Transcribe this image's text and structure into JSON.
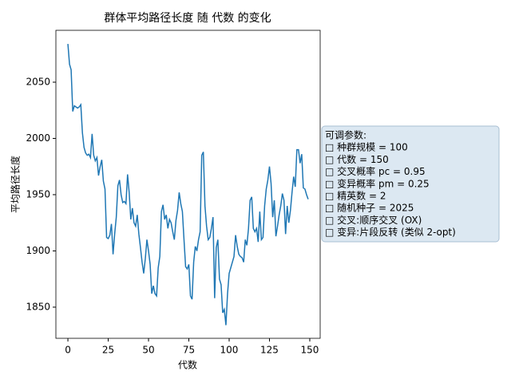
{
  "chart_data": {
    "type": "line",
    "title": "群体平均路径长度 随 代数 的变化",
    "xlabel": "代数",
    "ylabel": "平均路径长度",
    "x": [
      0,
      1,
      2,
      3,
      4,
      5,
      6,
      7,
      8,
      9,
      10,
      11,
      12,
      13,
      14,
      15,
      16,
      17,
      18,
      19,
      20,
      21,
      22,
      23,
      24,
      25,
      26,
      27,
      28,
      29,
      30,
      31,
      32,
      33,
      34,
      35,
      36,
      37,
      38,
      39,
      40,
      41,
      42,
      43,
      44,
      45,
      46,
      47,
      48,
      49,
      50,
      51,
      52,
      53,
      54,
      55,
      56,
      57,
      58,
      59,
      60,
      61,
      62,
      63,
      64,
      65,
      66,
      67,
      68,
      69,
      70,
      71,
      72,
      73,
      74,
      75,
      76,
      77,
      78,
      79,
      80,
      81,
      82,
      83,
      84,
      85,
      86,
      87,
      88,
      89,
      90,
      91,
      92,
      93,
      94,
      95,
      96,
      97,
      98,
      99,
      100,
      101,
      102,
      103,
      104,
      105,
      106,
      107,
      108,
      109,
      110,
      111,
      112,
      113,
      114,
      115,
      116,
      117,
      118,
      119,
      120,
      121,
      122,
      123,
      124,
      125,
      126,
      127,
      128,
      129,
      130,
      131,
      132,
      133,
      134,
      135,
      136,
      137,
      138,
      139,
      140,
      141,
      142,
      143,
      144,
      145,
      146,
      147,
      148,
      149
    ],
    "series": [
      {
        "color": "#1f77b4",
        "values": [
          2084,
          2066,
          2061,
          2024,
          2029,
          2028,
          2027,
          2028,
          2030,
          2005,
          1992,
          1987,
          1985,
          1986,
          1983,
          2004,
          1985,
          1980,
          1983,
          1967,
          1975,
          1981,
          1962,
          1955,
          1912,
          1911,
          1914,
          1924,
          1897,
          1915,
          1930,
          1958,
          1963,
          1950,
          1943,
          1944,
          1942,
          1968,
          1952,
          1928,
          1938,
          1925,
          1922,
          1932,
          1915,
          1903,
          1890,
          1880,
          1893,
          1910,
          1900,
          1888,
          1862,
          1869,
          1862,
          1860,
          1885,
          1895,
          1935,
          1941,
          1928,
          1932,
          1920,
          1928,
          1925,
          1917,
          1910,
          1927,
          1936,
          1952,
          1942,
          1935,
          1910,
          1886,
          1884,
          1888,
          1860,
          1857,
          1890,
          1904,
          1900,
          1910,
          1917,
          1985,
          1988,
          1940,
          1922,
          1910,
          1912,
          1920,
          1930,
          1858,
          1903,
          1910,
          1875,
          1870,
          1845,
          1848,
          1834,
          1862,
          1880,
          1885,
          1890,
          1895,
          1914,
          1904,
          1897,
          1895,
          1894,
          1890,
          1910,
          1905,
          1920,
          1945,
          1948,
          1920,
          1917,
          1920,
          1908,
          1935,
          1910,
          1912,
          1940,
          1955,
          1963,
          1975,
          1960,
          1930,
          1945,
          1913,
          1922,
          1932,
          1940,
          1951,
          1945,
          1915,
          1940,
          1925,
          1936,
          1952,
          1966,
          1957,
          1990,
          1990,
          1978,
          1986,
          1956,
          1955,
          1950,
          1946
        ]
      }
    ],
    "xlim": [
      -7.45,
      156.45
    ],
    "ylim": [
      1822.3,
      2096.1
    ],
    "xticks": [
      0,
      25,
      50,
      75,
      100,
      125,
      150
    ],
    "yticks": [
      1850,
      1900,
      1950,
      2000,
      2050
    ],
    "annotation": [
      "可调参数:",
      "□ 种群规模 = 100",
      "□ 代数 = 150",
      "□ 交叉概率 pc = 0.95",
      "□ 变异概率 pm = 0.25",
      "□ 精英数 = 2",
      "□ 随机种子 = 2025",
      "□ 交叉:顺序交叉 (OX)",
      "□ 变异:片段反转 (类似 2-opt)"
    ]
  }
}
